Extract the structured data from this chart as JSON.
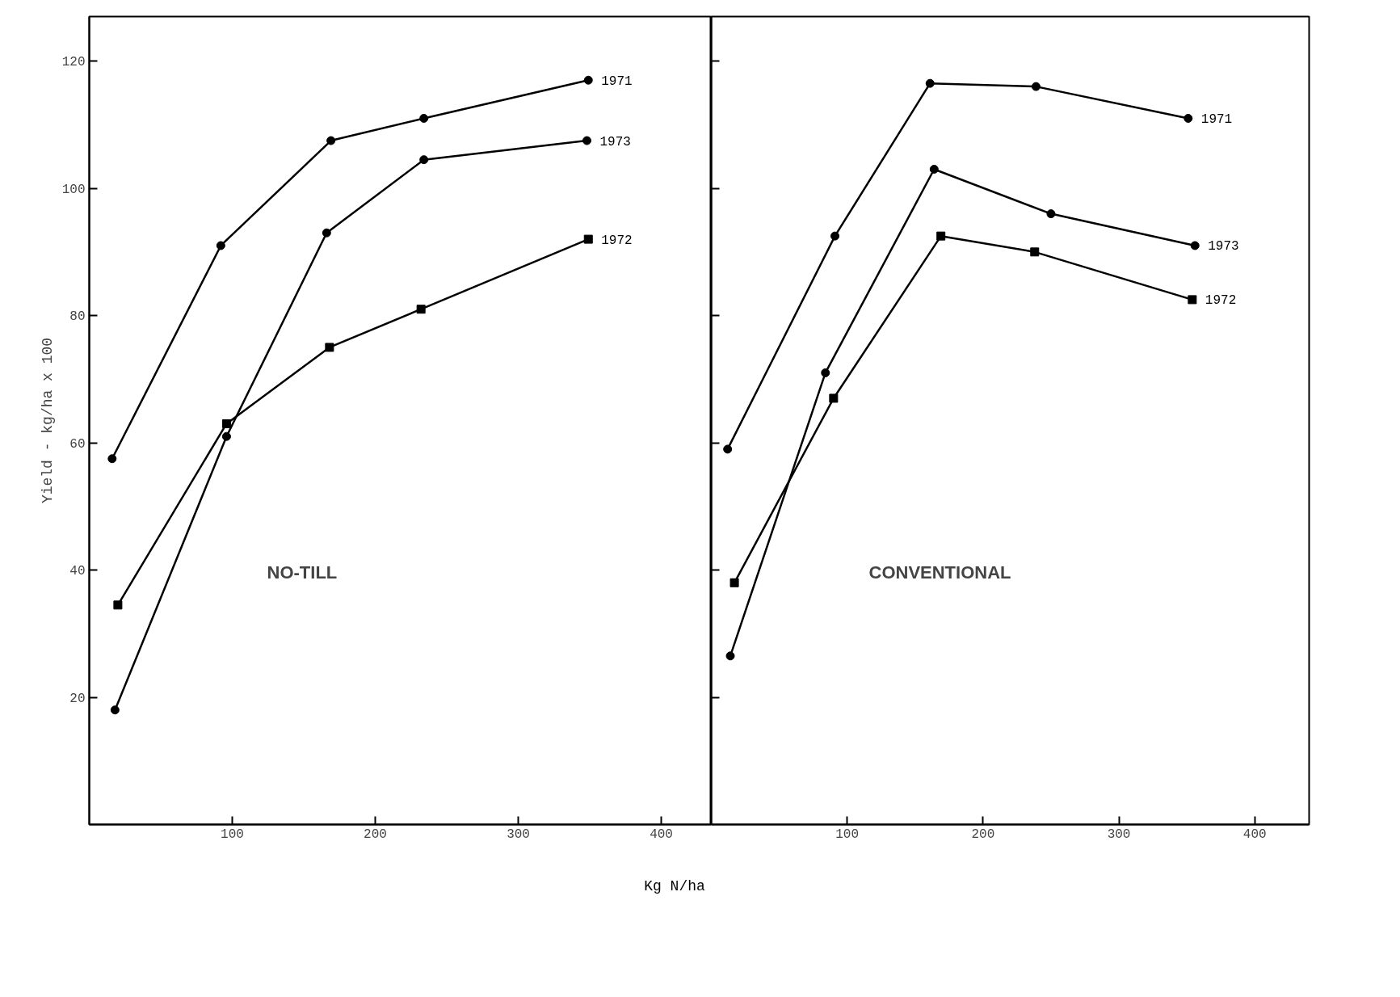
{
  "chart_data": [
    {
      "type": "line",
      "ylabel": "Yield - kg/ha x 100",
      "xlabel": "Kg N/ha",
      "annotations": [
        "NO-TILL"
      ],
      "xlim": [
        0,
        435
      ],
      "ylim": [
        0,
        127
      ],
      "xticks": [
        100,
        200,
        300,
        400
      ],
      "yticks": [
        20,
        40,
        60,
        80,
        100,
        120
      ],
      "grid": false,
      "line_style": "solid",
      "series": [
        {
          "name": "1971",
          "color": "#000000",
          "marker": "circle",
          "x": [
            16,
            92,
            169,
            234,
            349
          ],
          "values": [
            57.5,
            91,
            107.5,
            111,
            117
          ]
        },
        {
          "name": "1973",
          "color": "#000000",
          "marker": "circle",
          "x": [
            18,
            96,
            166,
            234,
            348
          ],
          "values": [
            18,
            61,
            93,
            104.5,
            107.5
          ]
        },
        {
          "name": "1972",
          "color": "#000000",
          "marker": "square",
          "x": [
            20,
            96,
            168,
            232,
            349
          ],
          "values": [
            34.5,
            63,
            75,
            81,
            92
          ]
        }
      ]
    },
    {
      "type": "line",
      "annotations": [
        "CONVENTIONAL"
      ],
      "xlim": [
        0,
        440
      ],
      "ylim": [
        0,
        127
      ],
      "xticks": [
        100,
        200,
        300,
        400
      ],
      "yticks": [
        20,
        40,
        60,
        80,
        100,
        120
      ],
      "tick_labels": "x",
      "grid": false,
      "line_style": "solid",
      "series": [
        {
          "name": "1971",
          "color": "#000000",
          "marker": "circle",
          "x": [
            12,
            91,
            161,
            239,
            351
          ],
          "values": [
            59,
            92.5,
            116.5,
            116,
            111
          ]
        },
        {
          "name": "1973",
          "color": "#000000",
          "marker": "circle",
          "x": [
            14,
            84,
            164,
            250,
            356
          ],
          "values": [
            26.5,
            71,
            103,
            96,
            91
          ]
        },
        {
          "name": "1972",
          "color": "#000000",
          "marker": "square",
          "x": [
            17,
            90,
            169,
            238,
            354
          ],
          "values": [
            38,
            67,
            92.5,
            90,
            82.5
          ]
        }
      ]
    }
  ]
}
